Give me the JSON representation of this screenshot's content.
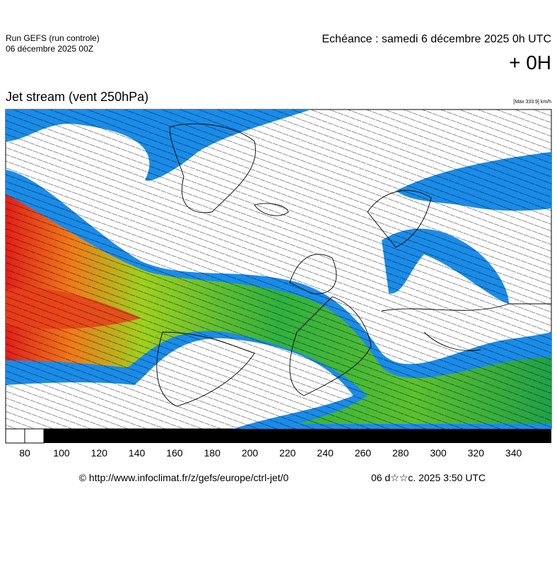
{
  "header": {
    "run": "Run GEFS (run controle)",
    "run_date": "06 décembre 2025 00Z",
    "echeance": "Echéance : samedi 6 décembre 2025 0h UTC",
    "offset": "+ 0H"
  },
  "map": {
    "title": "Jet stream (vent 250hPa)",
    "max_note": "[Max 333.9] km/h"
  },
  "colorbar": {
    "labels": [
      80,
      100,
      120,
      140,
      160,
      180,
      200,
      220,
      240,
      260,
      280,
      300,
      320,
      340
    ]
  },
  "footer": {
    "source": "© http://www.infoclimat.fr/z/gefs/europe/ctrl-jet/0",
    "generated": "06 d☆☆c. 2025  3:50 UTC"
  }
}
